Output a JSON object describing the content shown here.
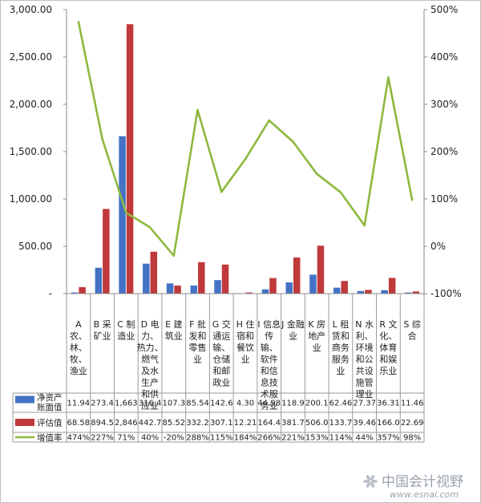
{
  "chart_data": {
    "type": "bar+line",
    "categories": [
      "A 农、林、牧、渔业",
      "B 采矿业",
      "C 制造业",
      "D 电力、热力、燃气及水生产和供应业",
      "E 建筑业",
      "F 批发和零售业",
      "G 交通运输、仓储和邮政业",
      "H 住宿和餐饮业",
      "I 信息传输、软件和信息技术服务业",
      "J 金融业",
      "K 房地产业",
      "L 租赁和商务服务业",
      "N 水利、环境和公共设施管理业",
      "R 文化、体育和娱乐业",
      "S 综合"
    ],
    "series": [
      {
        "name": "净资产账面值",
        "type": "bar",
        "axis": "left",
        "color": "#4472C4",
        "values": [
          11.94,
          273.4,
          1663,
          316.4,
          107.3,
          85.54,
          142.6,
          4.3,
          44.98,
          118.9,
          200.1,
          62.46,
          27.37,
          36.31,
          11.46
        ],
        "labels": [
          "11.94",
          "273.4",
          "1,663",
          "316.4",
          "107.3",
          "85.54",
          "142.6",
          "4.30",
          "44.98",
          "118.9",
          "200.1",
          "62.46",
          "27.37",
          "36.31",
          "11.46"
        ]
      },
      {
        "name": "评估值",
        "type": "bar",
        "axis": "left",
        "color": "#C0393B",
        "values": [
          68.58,
          894.5,
          2846,
          442.7,
          85.52,
          332.2,
          307.1,
          12.21,
          164.4,
          381.7,
          506.0,
          133.7,
          39.46,
          166.0,
          22.69
        ],
        "labels": [
          "68.58",
          "894.5",
          "2,846",
          "442.7",
          "85.52",
          "332.2",
          "307.1",
          "12.21",
          "164.4",
          "381.7",
          "506.0",
          "133.7",
          "39.46",
          "166.0",
          "22.69"
        ]
      },
      {
        "name": "增值率",
        "type": "line",
        "axis": "right",
        "color": "#8DB83F",
        "values": [
          474,
          227,
          71,
          40,
          -20,
          288,
          115,
          184,
          266,
          221,
          153,
          114,
          44,
          357,
          98
        ],
        "labels": [
          "474%",
          "227%",
          "71%",
          "40%",
          "-20%",
          "288%",
          "115%",
          "184%",
          "266%",
          "221%",
          "153%",
          "114%",
          "44%",
          "357%",
          "98%"
        ]
      }
    ],
    "y_left": {
      "min": 0,
      "max": 3000,
      "ticks": [
        "-",
        "500.00",
        "1,000.00",
        "1,500.00",
        "2,000.00",
        "2,500.00",
        "3,000.00"
      ]
    },
    "y_right": {
      "min": -100,
      "max": 500,
      "ticks": [
        "-100%",
        "0%",
        "100%",
        "200%",
        "300%",
        "400%",
        "500%"
      ]
    },
    "title": "",
    "legend": "data-table-left"
  },
  "category_lines": [
    [
      "A",
      "农、",
      "林、",
      "牧、",
      "渔业"
    ],
    [
      "B 采",
      "矿业"
    ],
    [
      "C 制",
      "造业"
    ],
    [
      "D 电",
      "力、",
      "热力、",
      "燃气",
      "及水",
      "生产",
      "和供",
      "应业"
    ],
    [
      "E 建",
      "筑业"
    ],
    [
      "F 批",
      "发和",
      "零售",
      "业"
    ],
    [
      "G 交",
      "通运",
      "输、",
      "仓储",
      "和邮",
      "政业"
    ],
    [
      "H 住",
      "宿和",
      "餐饮",
      "业"
    ],
    [
      "I 信息",
      "传",
      "输、",
      "软件",
      "和信",
      "息技",
      "术服",
      "务业"
    ],
    [
      "J 金融",
      "业"
    ],
    [
      "K 房",
      "地产",
      "业"
    ],
    [
      "L 租",
      "赁和",
      "商务",
      "服务",
      "业"
    ],
    [
      "N 水",
      "利、",
      "环境",
      "和公",
      "共设",
      "施管",
      "理业"
    ],
    [
      "R 文",
      "化、",
      "体育",
      "和娱",
      "乐业"
    ],
    [
      "S 综",
      "合"
    ]
  ],
  "legend_lines": {
    "s0": [
      "净资产",
      "账面值"
    ],
    "s1": [
      "评估值"
    ],
    "s2": [
      "增值率"
    ]
  },
  "watermark": {
    "cn": "中国会计视野",
    "url": "www.esnai.com"
  }
}
